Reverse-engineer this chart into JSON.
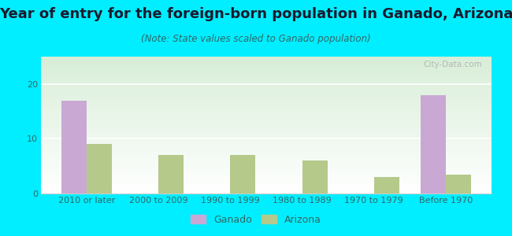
{
  "title": "Year of entry for the foreign-born population in Ganado, Arizona",
  "subtitle": "(Note: State values scaled to Ganado population)",
  "categories": [
    "2010 or later",
    "2000 to 2009",
    "1990 to 1999",
    "1980 to 1989",
    "1970 to 1979",
    "Before 1970"
  ],
  "ganado_values": [
    17,
    0,
    0,
    0,
    0,
    18
  ],
  "arizona_values": [
    9,
    7,
    7,
    6,
    3,
    3.5
  ],
  "ganado_color": "#c9a8d4",
  "arizona_color": "#b5c98a",
  "background_outer": "#00eeff",
  "ylim": [
    0,
    25
  ],
  "yticks": [
    0,
    10,
    20
  ],
  "bar_width": 0.35,
  "title_fontsize": 13,
  "subtitle_fontsize": 8.5,
  "tick_fontsize": 8,
  "legend_fontsize": 9
}
